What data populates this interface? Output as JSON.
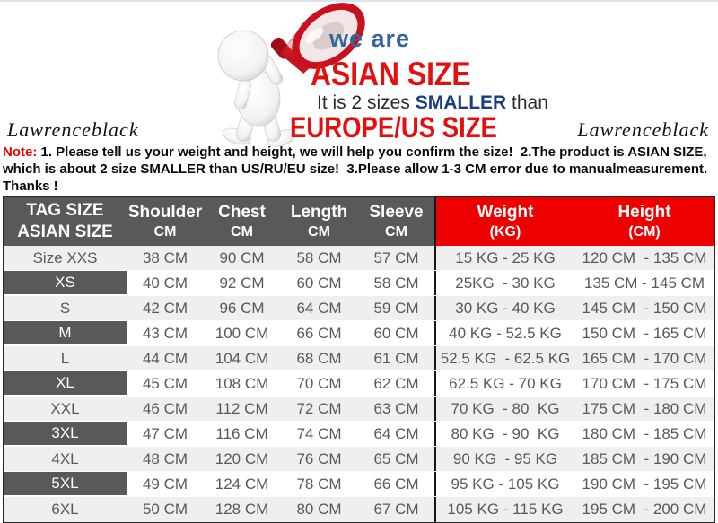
{
  "banner": {
    "we_are": "we are",
    "asian_size": "ASIAN SIZE",
    "smaller_prefix": "It is 2 sizes ",
    "smaller_word": "SMALLER",
    "smaller_suffix": " than",
    "europe_size": "EUROPE/US SIZE",
    "brand_left": "Lawrenceblack",
    "brand_right": "Lawrenceblack",
    "megaphone_icon": "megaphone-icon",
    "person_icon": "person-figure"
  },
  "note": {
    "label": "Note:",
    "line1": " 1. Please tell us your weight and height, we will help you confirm the size!  2.The product is ASIAN SIZE,",
    "line2": "which is about 2 size SMALLER than US/RU/EU size!  3.Please allow 1-3 CM error due to manualmeasurement.",
    "line3": "Thanks !"
  },
  "colors": {
    "banner_red": "#e60f0f",
    "banner_blue": "#336699",
    "smaller_navy": "#1c3e7e",
    "note_red": "#e60000",
    "header_gray": "#595959",
    "header_red": "#ee0000",
    "row_light_gray": "#efefef",
    "body_text_gray": "#595959"
  },
  "table": {
    "header": {
      "tag_size_line1": "TAG SIZE",
      "tag_size_line2": "ASIAN SIZE",
      "columns": [
        {
          "line1": "Shoulder",
          "line2": "CM"
        },
        {
          "line1": "Chest",
          "line2": "CM"
        },
        {
          "line1": "Length",
          "line2": "CM"
        },
        {
          "line1": "Sleeve",
          "line2": "CM"
        }
      ],
      "weight_line1": "Weight",
      "weight_line2": "(KG)",
      "height_line1": "Height",
      "height_line2": "(CM)"
    },
    "rows": [
      {
        "size": "Size XXS",
        "shoulder": "38 CM",
        "chest": "90 CM",
        "length": "58 CM",
        "sleeve": "57 CM",
        "weight": "15 KG - 25 KG",
        "height": "120 CM  - 135 CM",
        "dark": false
      },
      {
        "size": "XS",
        "shoulder": "40 CM",
        "chest": "92 CM",
        "length": "60 CM",
        "sleeve": "58 CM",
        "weight": "25KG  - 30 KG",
        "height": "135 CM - 145 CM",
        "dark": true
      },
      {
        "size": "S",
        "shoulder": "42 CM",
        "chest": "96 CM",
        "length": "64 CM",
        "sleeve": "59 CM",
        "weight": "30 KG - 40 KG",
        "height": "145 CM  - 150 CM",
        "dark": false
      },
      {
        "size": "M",
        "shoulder": "43 CM",
        "chest": "100 CM",
        "length": "66 CM",
        "sleeve": "60 CM",
        "weight": "40 KG - 52.5 KG",
        "height": "150 CM  - 165 CM",
        "dark": true
      },
      {
        "size": "L",
        "shoulder": "44 CM",
        "chest": "104 CM",
        "length": "68 CM",
        "sleeve": "61 CM",
        "weight": "52.5 KG  - 62.5 KG",
        "height": "165 CM  - 170 CM",
        "dark": false
      },
      {
        "size": "XL",
        "shoulder": "45 CM",
        "chest": "108 CM",
        "length": "70 CM",
        "sleeve": "62 CM",
        "weight": "62.5 KG - 70 KG",
        "height": "170 CM  - 175 CM",
        "dark": true
      },
      {
        "size": "XXL",
        "shoulder": "46 CM",
        "chest": "112 CM",
        "length": "72 CM",
        "sleeve": "63 CM",
        "weight": "70 KG  - 80  KG",
        "height": "175 CM  - 180 CM",
        "dark": false
      },
      {
        "size": "3XL",
        "shoulder": "47 CM",
        "chest": "116 CM",
        "length": "74 CM",
        "sleeve": "64 CM",
        "weight": "80 KG  - 90  KG",
        "height": "180 CM  - 185 CM",
        "dark": true
      },
      {
        "size": "4XL",
        "shoulder": "48 CM",
        "chest": "120 CM",
        "length": "76 CM",
        "sleeve": "65 CM",
        "weight": "90 KG  - 95 KG",
        "height": "185 CM  - 190 CM",
        "dark": false
      },
      {
        "size": "5XL",
        "shoulder": "49 CM",
        "chest": "124 CM",
        "length": "78 CM",
        "sleeve": "66 CM",
        "weight": "95 KG - 105 KG",
        "height": "190 CM  - 195 CM",
        "dark": true
      },
      {
        "size": "6XL",
        "shoulder": "50 CM",
        "chest": "128 CM",
        "length": "80 CM",
        "sleeve": "67 CM",
        "weight": "105 KG - 115 KG",
        "height": "195 CM  - 200 CM",
        "dark": false
      }
    ]
  }
}
